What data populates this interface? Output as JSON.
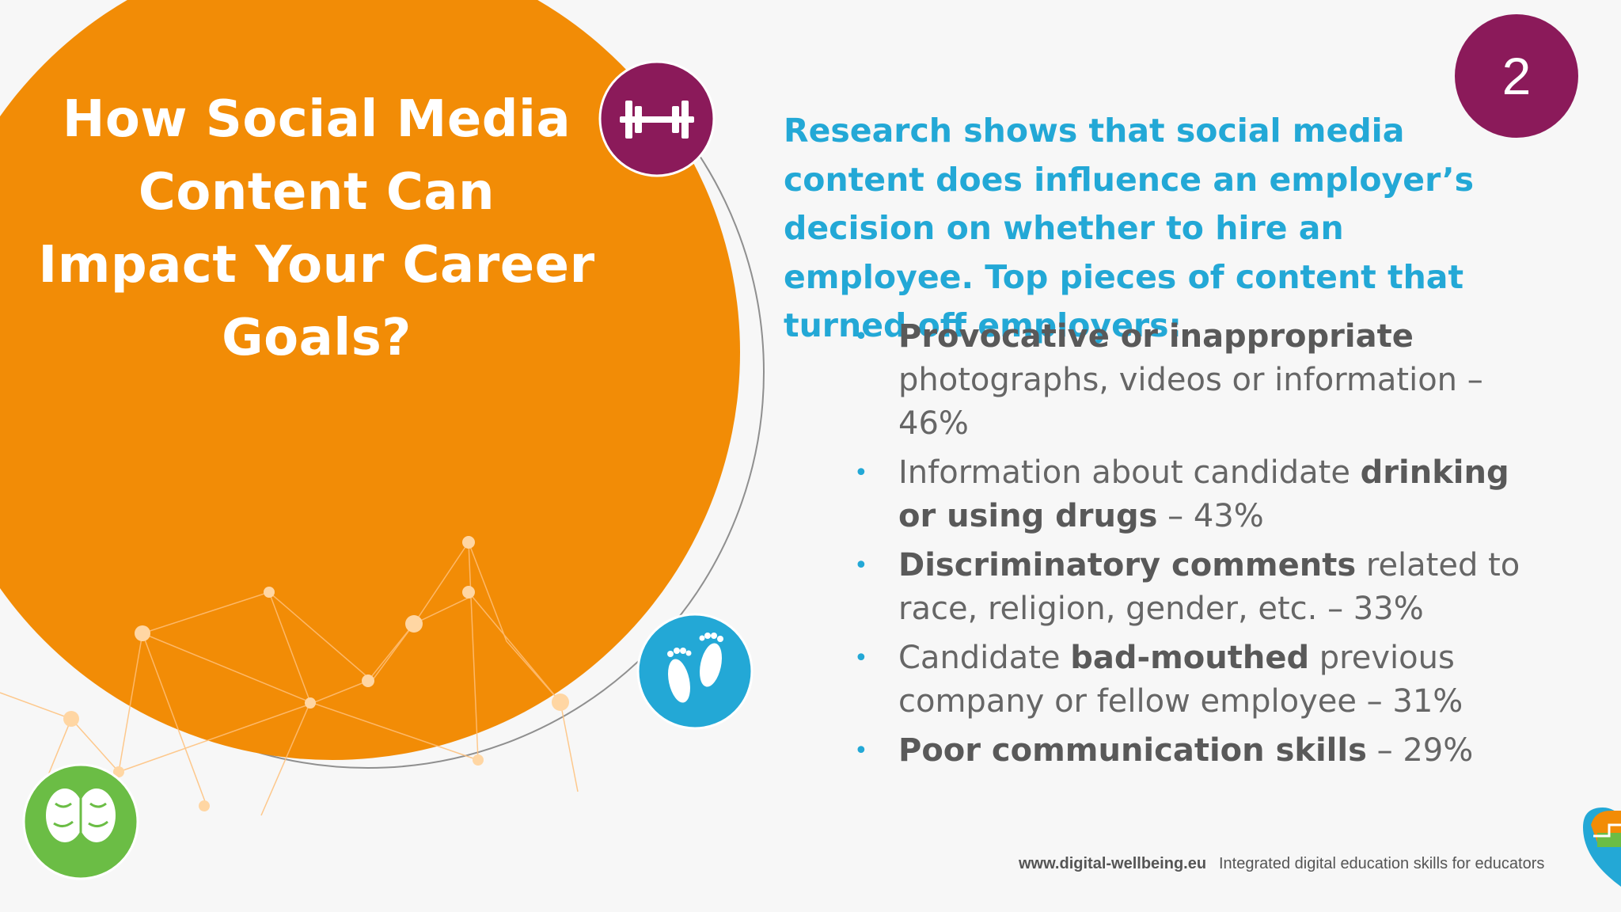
{
  "slide": {
    "title": "How Social Media Content Can Impact Your Career Goals?",
    "page_number": "2",
    "intro": "Research shows that social media content does influence an employer’s decision on whether to hire an employee. Top pieces of content that turned off employers:",
    "bullets": [
      {
        "bold": "Provocative or inappropriate",
        "rest": " photographs, videos or information – 46%"
      },
      {
        "pre": "Information about candidate ",
        "bold": "drinking or using drugs",
        "rest": " – 43%"
      },
      {
        "bold": "Discriminatory comments",
        "rest": " related to race, religion, gender, etc. – 33%"
      },
      {
        "pre": "Candidate ",
        "bold": "bad-mouthed",
        "rest": " previous company or fellow employee – 31%"
      },
      {
        "bold": "Poor communication skills",
        "rest": " – 29%"
      }
    ]
  },
  "footer": {
    "url": "www.digital-wellbeing.eu",
    "tagline": "Integrated digital education skills for educators"
  },
  "icons": [
    "dumbbell-icon",
    "footprints-icon",
    "brain-icon",
    "logo-icon"
  ],
  "colors": {
    "orange": "#f28c06",
    "purple": "#8b1a5a",
    "blue": "#23a8d6",
    "green": "#6bbd45",
    "text": "#666666"
  }
}
